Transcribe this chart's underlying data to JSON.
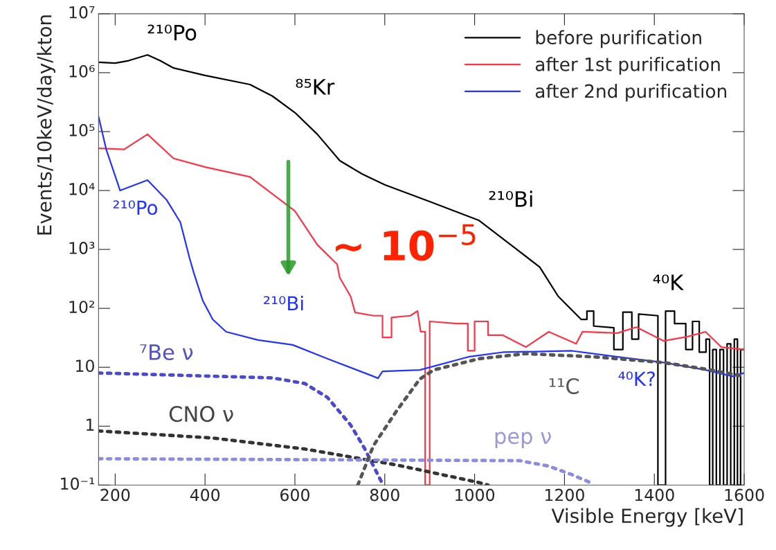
{
  "chart_data": {
    "type": "line",
    "xlabel": "Visible Energy [keV]",
    "ylabel": "Events/10keV/day/kton",
    "xlim": [
      163,
      1600
    ],
    "xticks": [
      200,
      400,
      600,
      800,
      1000,
      1200,
      1400,
      1600
    ],
    "log": "y",
    "ylim": [
      0.1,
      10000000
    ],
    "yticks": [
      {
        "value": 0.1,
        "label": "10⁻¹"
      },
      1,
      10,
      {
        "value": 100,
        "label": "10²"
      },
      {
        "value": 1000,
        "label": "10³"
      },
      {
        "value": 10000,
        "label": "10⁴"
      },
      {
        "value": 100000,
        "label": "10⁵"
      },
      {
        "value": 1000000,
        "label": "10⁶"
      },
      {
        "value": 10000000,
        "label": "10⁷"
      }
    ],
    "grid": false,
    "legend": "top right",
    "marker": "none",
    "series": [
      {
        "name": "before purification",
        "color": "#000000",
        "line_style": "solid",
        "x": [
          163,
          200,
          230,
          272,
          300,
          330,
          400,
          500,
          550,
          600,
          650,
          700,
          750,
          800,
          900,
          1010,
          1094,
          1145,
          1186,
          1237,
          1250,
          1250,
          1265,
          1265,
          1310,
          1310,
          1330,
          1330,
          1350,
          1350,
          1365,
          1365,
          1408,
          1408,
          1425,
          1425,
          1445,
          1445,
          1470,
          1470,
          1485,
          1485,
          1500,
          1500,
          1515,
          1515,
          1523,
          1523,
          1530,
          1530,
          1538,
          1538,
          1546,
          1546,
          1554,
          1554,
          1562,
          1562,
          1570,
          1570,
          1578,
          1578,
          1585,
          1585,
          1592,
          1592,
          1600
        ],
        "values": [
          1500000,
          1450000,
          1600000,
          2000000,
          1600000,
          1200000,
          900000,
          630000,
          400000,
          210000,
          90000,
          32000,
          19000,
          12500,
          6500,
          3100,
          1000,
          500,
          160,
          65,
          65,
          90,
          90,
          50,
          47,
          20,
          20,
          86,
          86,
          30,
          30,
          80,
          75,
          0.1,
          0.1,
          90,
          90,
          55,
          55,
          20,
          20,
          60,
          60,
          18,
          18,
          30,
          30,
          0.1,
          0.1,
          20,
          20,
          0.1,
          0.1,
          20,
          20,
          0.1,
          0.1,
          25,
          25,
          0.1,
          0.1,
          30,
          30,
          0.1,
          0.1,
          20,
          20
        ]
      },
      {
        "name": "after 1st purification",
        "color": "#ff3344",
        "line_style": "solid",
        "x": [
          163,
          220,
          272,
          330,
          400,
          500,
          600,
          650,
          694,
          700,
          724,
          734,
          775,
          795,
          795,
          815,
          815,
          857,
          873,
          880,
          890,
          890,
          900,
          900,
          960,
          985,
          985,
          1000,
          1000,
          1030,
          1030,
          1063,
          1114,
          1165,
          1226,
          1240,
          1318,
          1360,
          1421,
          1473,
          1514,
          1549,
          1600
        ],
        "values": [
          52000,
          50000,
          90000,
          35000,
          25000,
          17000,
          4500,
          1200,
          560,
          330,
          160,
          85,
          75,
          75,
          32,
          32,
          70,
          75,
          90,
          40,
          40,
          0.1,
          0.1,
          60,
          55,
          55,
          19,
          19,
          60,
          60,
          35,
          35,
          22,
          40,
          25,
          40,
          38,
          48,
          28,
          33,
          40,
          22,
          20
        ]
      },
      {
        "name": "after 2nd purification",
        "color": "#2233ff",
        "line_style": "solid",
        "x": [
          163,
          180,
          211,
          272,
          314,
          345,
          365,
          375,
          395,
          417,
          447,
          518,
          595,
          672,
          775,
          785,
          795,
          878,
          986,
          1063,
          1217,
          1318,
          1421,
          1514,
          1575,
          1600
        ],
        "values": [
          180000,
          50000,
          10000,
          15000,
          7000,
          2900,
          740,
          400,
          135,
          65,
          40,
          29,
          24,
          14,
          7,
          6.5,
          8.5,
          9,
          15,
          18,
          19,
          15,
          12,
          9,
          7,
          8
        ]
      },
      {
        "color": "#4a4ad0",
        "line_style": "dotted",
        "x": [
          163,
          550,
          622,
          672,
          724,
          755,
          795
        ],
        "values": [
          8,
          6.6,
          5.3,
          3.1,
          1.05,
          0.42,
          0.105
        ]
      },
      {
        "color": "#333333",
        "line_style": "dotted",
        "x": [
          163,
          417,
          622,
          826,
          1011,
          1030
        ],
        "values": [
          0.83,
          0.63,
          0.41,
          0.22,
          0.11,
          0.1
        ]
      },
      {
        "color": "#8c8ce0",
        "line_style": "dotted",
        "x": [
          163,
          1100,
          1165,
          1217,
          1258
        ],
        "values": [
          0.28,
          0.26,
          0.21,
          0.15,
          0.11
        ]
      },
      {
        "color": "#555555",
        "line_style": "dotted",
        "x": [
          740,
          775,
          826,
          878,
          909,
          1011,
          1114,
          1268,
          1421,
          1525,
          1600
        ],
        "values": [
          0.1,
          0.47,
          1.8,
          6.3,
          9,
          14,
          17,
          15,
          12,
          9,
          7
        ]
      }
    ],
    "annotations": [
      "²¹⁰Po",
      "⁸⁵Kr",
      "²¹⁰Bi",
      "⁴⁰K",
      "²¹⁰Po",
      "²¹⁰Bi",
      "⁷Be ν",
      "CNO ν",
      "pep ν",
      "¹¹C",
      "⁴⁰K?",
      "~ 10$^{−5}$"
    ]
  }
}
